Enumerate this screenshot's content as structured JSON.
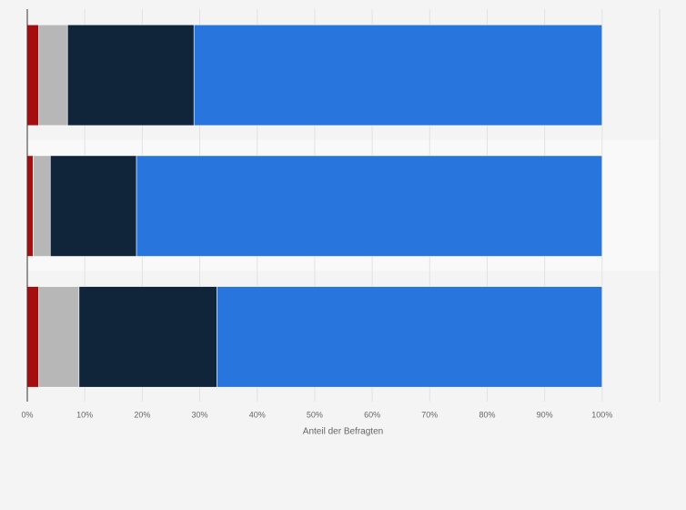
{
  "chart_data": {
    "type": "stacked-bar-horizontal",
    "x_label": "Anteil der Befragten",
    "categories": [
      null,
      null,
      null
    ],
    "series": [
      {
        "color": "#a50e0e",
        "values": [
          2,
          1,
          2
        ]
      },
      {
        "color": "#b7b7b7",
        "values": [
          5,
          3,
          7
        ]
      },
      {
        "color": "#10243a",
        "values": [
          22,
          15,
          24
        ]
      },
      {
        "color": "#2876dd",
        "values": [
          71,
          81,
          67
        ]
      }
    ],
    "xlim": [
      0,
      110
    ],
    "xticks": [
      {
        "value": 0,
        "label": "0%"
      },
      {
        "value": 10,
        "label": "10%"
      },
      {
        "value": 20,
        "label": "20%"
      },
      {
        "value": 30,
        "label": "30%"
      },
      {
        "value": 40,
        "label": "40%"
      },
      {
        "value": 50,
        "label": "50%"
      },
      {
        "value": 60,
        "label": "60%"
      },
      {
        "value": 70,
        "label": "70%"
      },
      {
        "value": 80,
        "label": "80%"
      },
      {
        "value": 90,
        "label": "90%"
      },
      {
        "value": 100,
        "label": "100%"
      }
    ],
    "grid": true
  }
}
